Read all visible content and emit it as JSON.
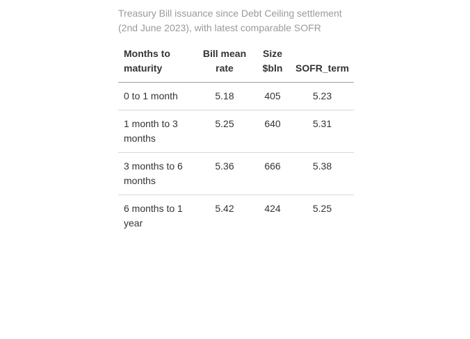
{
  "caption": {
    "line1": "Treasury Bill issuance since Debt Ceiling settlement",
    "line2": "(2nd June 2023), with latest comparable SOFR"
  },
  "table": {
    "headers": {
      "maturity": "Months to maturity",
      "rate": "Bill mean rate",
      "size": "Size $bln",
      "sofr": "SOFR_term"
    },
    "rows": [
      {
        "maturity": "0 to 1 month",
        "rate": "5.18",
        "size": "405",
        "sofr": "5.23"
      },
      {
        "maturity": "1 month to 3 months",
        "rate": "5.25",
        "size": "640",
        "sofr": "5.31"
      },
      {
        "maturity": "3 months to 6 months",
        "rate": "5.36",
        "size": "666",
        "sofr": "5.38"
      },
      {
        "maturity": "6 months to 1 year",
        "rate": "5.42",
        "size": "424",
        "sofr": "5.25"
      }
    ]
  }
}
